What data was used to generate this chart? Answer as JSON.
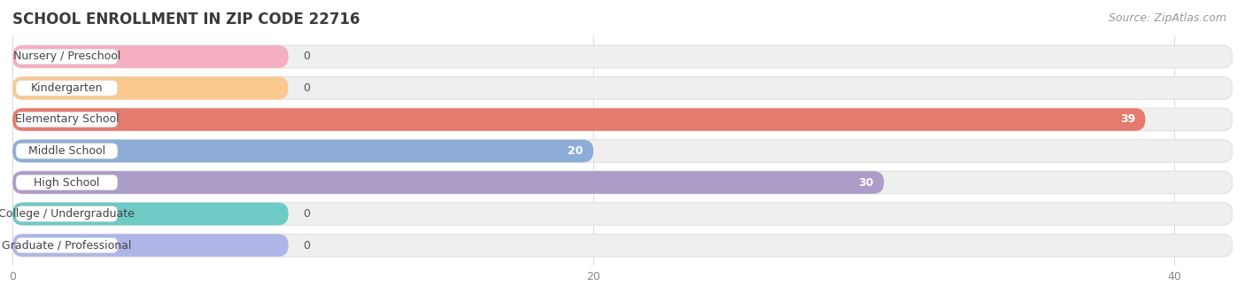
{
  "title": "SCHOOL ENROLLMENT IN ZIP CODE 22716",
  "source": "Source: ZipAtlas.com",
  "categories": [
    "Nursery / Preschool",
    "Kindergarten",
    "Elementary School",
    "Middle School",
    "High School",
    "College / Undergraduate",
    "Graduate / Professional"
  ],
  "values": [
    0,
    0,
    39,
    20,
    30,
    0,
    0
  ],
  "bar_colors": [
    "#f5afc2",
    "#f9c98e",
    "#e57b6f",
    "#8dadd8",
    "#ab9cc8",
    "#6dcac4",
    "#b0b5e8"
  ],
  "bar_bg_color": "#efefef",
  "bar_bg_border": "#e0e0e0",
  "xlim_max": 42,
  "xticks": [
    0,
    20,
    40
  ],
  "bar_height": 0.72,
  "bar_gap": 1.0,
  "title_fontsize": 12,
  "source_fontsize": 9,
  "label_fontsize": 9,
  "value_fontsize": 9,
  "background_color": "#ffffff",
  "zero_bar_width": 9.5
}
